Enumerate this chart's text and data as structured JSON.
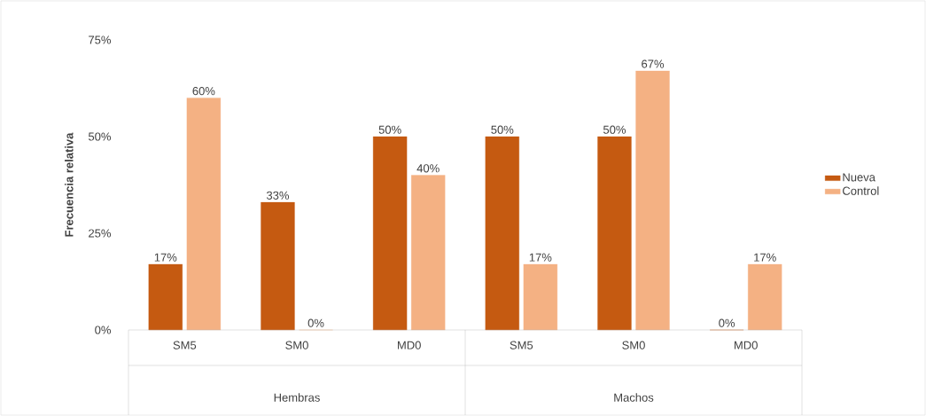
{
  "chart_data": {
    "type": "bar",
    "ylabel": "Frecuencia relativa",
    "categories": [
      "SM5",
      "SM0",
      "MD0",
      "SM5",
      "SM0",
      "MD0"
    ],
    "series": [
      {
        "name": "Nueva",
        "color": "#c55a11",
        "values": [
          17,
          33,
          50,
          50,
          50,
          0
        ],
        "value_labels": [
          "17%",
          "33%",
          "50%",
          "50%",
          "50%",
          "0%"
        ]
      },
      {
        "name": "Control",
        "color": "#f4b183",
        "values": [
          60,
          0,
          40,
          17,
          67,
          17
        ],
        "value_labels": [
          "60%",
          "0%",
          "40%",
          "17%",
          "67%",
          "17%"
        ]
      }
    ],
    "annotations": [
      "Hembras",
      "Machos"
    ],
    "ylim": [
      0,
      75
    ],
    "yticks": [
      {
        "value": 0,
        "label": "0%"
      },
      {
        "value": 25,
        "label": "25%"
      },
      {
        "value": 50,
        "label": "50%"
      },
      {
        "value": 75,
        "label": "75%"
      }
    ],
    "legend": "right"
  }
}
